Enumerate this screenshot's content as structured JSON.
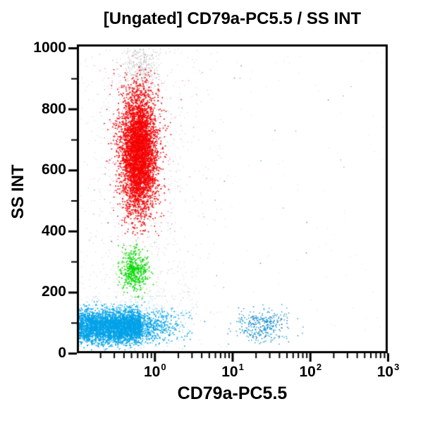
{
  "chart_data": {
    "type": "scatter",
    "subtype": "flow-cytometry-dot-plot",
    "title": "[Ungated] CD79a-PC5.5 / SS INT",
    "xlabel": "CD79a-PC5.5",
    "ylabel": "SS INT",
    "grid": false,
    "legend": "none",
    "x_axis": {
      "scale": "log",
      "min": 0.1,
      "max": 1000,
      "tick_values": [
        1,
        10,
        100,
        1000
      ],
      "tick_labels": [
        {
          "base": "10",
          "exp": "0"
        },
        {
          "base": "10",
          "exp": "1"
        },
        {
          "base": "10",
          "exp": "2"
        },
        {
          "base": "10",
          "exp": "3"
        }
      ]
    },
    "y_axis": {
      "scale": "linear",
      "min": 0,
      "max": 1000,
      "major_tick_step": 200,
      "minor_tick_step": 100,
      "tick_values": [
        1000,
        800,
        600,
        400,
        200,
        0
      ],
      "tick_labels": [
        "1000",
        "800",
        "600",
        "400",
        "200",
        "0"
      ]
    },
    "frame_color": "#000000",
    "background_color": "#ffffff",
    "populations": [
      {
        "label": "gray-background-left",
        "n": 340,
        "x": {
          "type": "loguniform",
          "min": -0.98,
          "max": 0.95
        },
        "y": {
          "type": "uniform",
          "min": 10,
          "max": 995
        },
        "color": "#cbcbcb",
        "alpha": 0.55,
        "size": 1.4
      },
      {
        "label": "gray-background-right",
        "n": 80,
        "x": {
          "type": "loguniform",
          "min": 0.95,
          "max": 2.95
        },
        "y": {
          "type": "uniform",
          "min": 25,
          "max": 985
        },
        "color": "#d3d3d3",
        "alpha": 0.5,
        "size": 1.3
      },
      {
        "label": "gray-halo-around-red",
        "n": 620,
        "x": {
          "type": "lognormal",
          "mu": -0.18,
          "sigma": 0.3,
          "min": -0.95,
          "max": 0.8
        },
        "y": {
          "type": "normal",
          "mu": 650,
          "sigma": 235,
          "min": 25,
          "max": 1000
        },
        "color": "#c6c6c6",
        "alpha": 0.6,
        "size": 1.4
      },
      {
        "label": "gray-doublets-top",
        "n": 330,
        "x": {
          "type": "lognormal",
          "mu": -0.17,
          "sigma": 0.12,
          "min": -0.7,
          "max": 0.4
        },
        "y": {
          "type": "normal",
          "mu": 935,
          "sigma": 55,
          "min": 830,
          "max": 1000
        },
        "color": "#b5b5b5",
        "alpha": 0.7,
        "size": 1.4
      },
      {
        "label": "gray-low-band",
        "n": 230,
        "x": {
          "type": "loguniform",
          "min": -0.98,
          "max": 0.55
        },
        "y": {
          "type": "normal",
          "mu": 195,
          "sigma": 75,
          "min": 55,
          "max": 360
        },
        "color": "#c9c9c9",
        "alpha": 0.55,
        "size": 1.4
      },
      {
        "label": "red-pink-fringe",
        "n": 210,
        "x": {
          "type": "lognormal",
          "mu": -0.2,
          "sigma": 0.23,
          "min": -0.9,
          "max": 0.55
        },
        "y": {
          "type": "normal",
          "mu": 650,
          "sigma": 190,
          "min": 330,
          "max": 985
        },
        "color": "#ff5fae",
        "alpha": 0.75,
        "size": 1.4
      },
      {
        "label": "red-dark-specks",
        "n": 260,
        "x": {
          "type": "lognormal",
          "mu": -0.2,
          "sigma": 0.16,
          "min": -0.85,
          "max": 0.5
        },
        "y": {
          "type": "normal",
          "mu": 655,
          "sigma": 135,
          "min": 355,
          "max": 950
        },
        "color": "#b20000",
        "alpha": 0.9,
        "size": 1.5
      },
      {
        "label": "red-high-ssc-population",
        "n": 4300,
        "x": {
          "type": "lognormal",
          "mu": -0.205,
          "sigma": 0.115,
          "min": -0.75,
          "max": 0.35
        },
        "y": {
          "type": "normal",
          "mu": 658,
          "sigma": 100,
          "min": 385,
          "max": 940
        },
        "color": "#f40000",
        "alpha": 0.95,
        "size": 1.7
      },
      {
        "label": "green-light-fringe",
        "n": 70,
        "x": {
          "type": "lognormal",
          "mu": -0.26,
          "sigma": 0.12,
          "min": -0.7,
          "max": 0.1
        },
        "y": {
          "type": "normal",
          "mu": 272,
          "sigma": 48,
          "min": 165,
          "max": 375
        },
        "color": "#8ee23c",
        "alpha": 0.85,
        "size": 1.4
      },
      {
        "label": "green-mid-ssc-population",
        "n": 430,
        "x": {
          "type": "lognormal",
          "mu": -0.26,
          "sigma": 0.085,
          "min": -0.62,
          "max": 0.06
        },
        "y": {
          "type": "normal",
          "mu": 272,
          "sigma": 36,
          "min": 178,
          "max": 362
        },
        "color": "#00d800",
        "alpha": 0.95,
        "size": 1.7
      },
      {
        "label": "blue-light-fringe",
        "n": 680,
        "x": {
          "type": "lognormal",
          "mu": -0.5,
          "sigma": 0.45,
          "min": -0.98,
          "max": 1.0
        },
        "y": {
          "type": "normal",
          "mu": 90,
          "sigma": 45,
          "min": 4,
          "max": 190
        },
        "color": "#7fd2f2",
        "alpha": 0.8,
        "size": 1.4
      },
      {
        "label": "blue-low-ssc-core",
        "n": 2600,
        "x": {
          "type": "loguniform",
          "min": -0.98,
          "max": -0.18
        },
        "y": {
          "type": "normal",
          "mu": 86,
          "sigma": 27,
          "min": 10,
          "max": 170
        },
        "color": "#00a2e8",
        "alpha": 0.92,
        "size": 1.7
      },
      {
        "label": "blue-low-ssc-tail",
        "n": 1100,
        "x": {
          "type": "lognormal",
          "mu": -0.3,
          "sigma": 0.3,
          "min": -0.98,
          "max": 0.85
        },
        "y": {
          "type": "normal",
          "mu": 86,
          "sigma": 27,
          "min": 10,
          "max": 170
        },
        "color": "#00a2e8",
        "alpha": 0.92,
        "size": 1.7
      },
      {
        "label": "cd79a-positive-cluster-main",
        "n": 200,
        "x": {
          "type": "lognormal",
          "mu": 1.38,
          "sigma": 0.16,
          "min": 0.95,
          "max": 1.95
        },
        "y": {
          "type": "normal",
          "mu": 90,
          "sigma": 28,
          "min": 28,
          "max": 160
        },
        "color": "#0d9edd",
        "alpha": 0.9,
        "size": 1.5
      },
      {
        "label": "cd79a-positive-cluster-dark",
        "n": 90,
        "x": {
          "type": "lognormal",
          "mu": 1.4,
          "sigma": 0.18,
          "min": 0.95,
          "max": 2.0
        },
        "y": {
          "type": "normal",
          "mu": 92,
          "sigma": 30,
          "min": 25,
          "max": 165
        },
        "color": "#1a6cb2",
        "alpha": 0.9,
        "size": 1.5
      },
      {
        "label": "cd79a-positive-cluster-teal",
        "n": 55,
        "x": {
          "type": "lognormal",
          "mu": 1.36,
          "sigma": 0.19,
          "min": 0.9,
          "max": 2.0
        },
        "y": {
          "type": "normal",
          "mu": 88,
          "sigma": 32,
          "min": 22,
          "max": 165
        },
        "color": "#0b80a4",
        "alpha": 0.9,
        "size": 1.4
      },
      {
        "label": "stray-outliers",
        "n": 40,
        "x": {
          "type": "loguniform",
          "min": -0.85,
          "max": 2.6
        },
        "y": {
          "type": "uniform",
          "min": 110,
          "max": 950
        },
        "colors": [
          "#e86aa8",
          "#9a9a9a",
          "#5a5a5a",
          "#35b06a"
        ],
        "alpha": 0.8,
        "size": 1.4
      }
    ]
  }
}
